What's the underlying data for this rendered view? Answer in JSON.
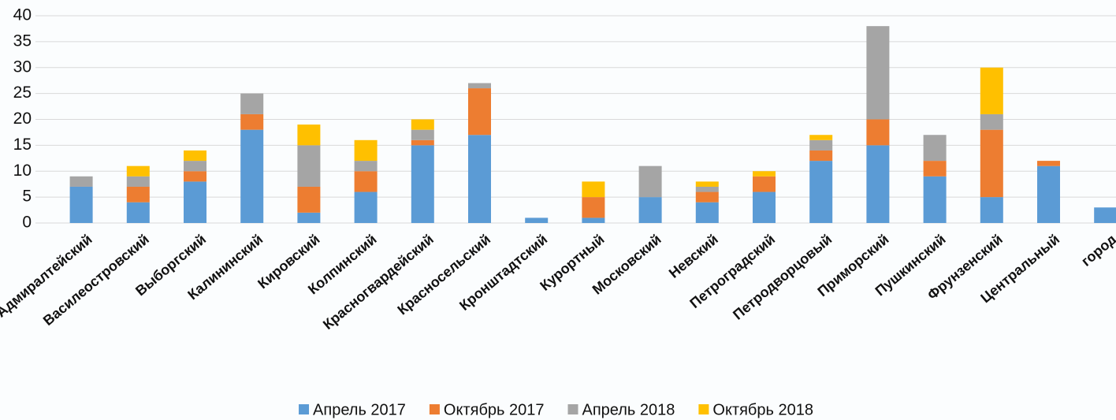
{
  "chart_data": {
    "type": "stacked-bar",
    "categories": [
      "Адмиралтейский",
      "Василеостровский",
      "Выборгский",
      "Калининский",
      "Кировский",
      "Колпинский",
      "Красногвардейский",
      "Красносельский",
      "Кронштадтский",
      "Курортный",
      "Московский",
      "Невский",
      "Петроградский",
      "Петродворцовый",
      "Приморский",
      "Пушкинский",
      "Фрунзенский",
      "Центральный",
      "город"
    ],
    "series": [
      {
        "name": "Апрель 2017",
        "color": "#5b9bd5",
        "values": [
          7,
          4,
          8,
          18,
          2,
          6,
          15,
          17,
          1,
          1,
          5,
          4,
          6,
          12,
          15,
          9,
          5,
          11,
          3
        ]
      },
      {
        "name": "Октябрь 2017",
        "color": "#ed7d31",
        "values": [
          0,
          3,
          2,
          3,
          5,
          4,
          1,
          9,
          0,
          4,
          0,
          2,
          3,
          2,
          5,
          3,
          13,
          1,
          0
        ]
      },
      {
        "name": "Апрель 2018",
        "color": "#a5a5a5",
        "values": [
          2,
          2,
          2,
          4,
          8,
          2,
          2,
          1,
          0,
          0,
          6,
          1,
          0,
          2,
          18,
          5,
          3,
          0,
          0
        ]
      },
      {
        "name": "Октябрь 2018",
        "color": "#ffc000",
        "values": [
          0,
          2,
          2,
          0,
          4,
          4,
          2,
          0,
          0,
          3,
          0,
          1,
          1,
          1,
          0,
          0,
          9,
          0,
          0
        ]
      }
    ],
    "ylim": [
      0,
      40
    ],
    "yticks": [
      0,
      5,
      10,
      15,
      20,
      25,
      30,
      35,
      40
    ],
    "grid": true
  }
}
